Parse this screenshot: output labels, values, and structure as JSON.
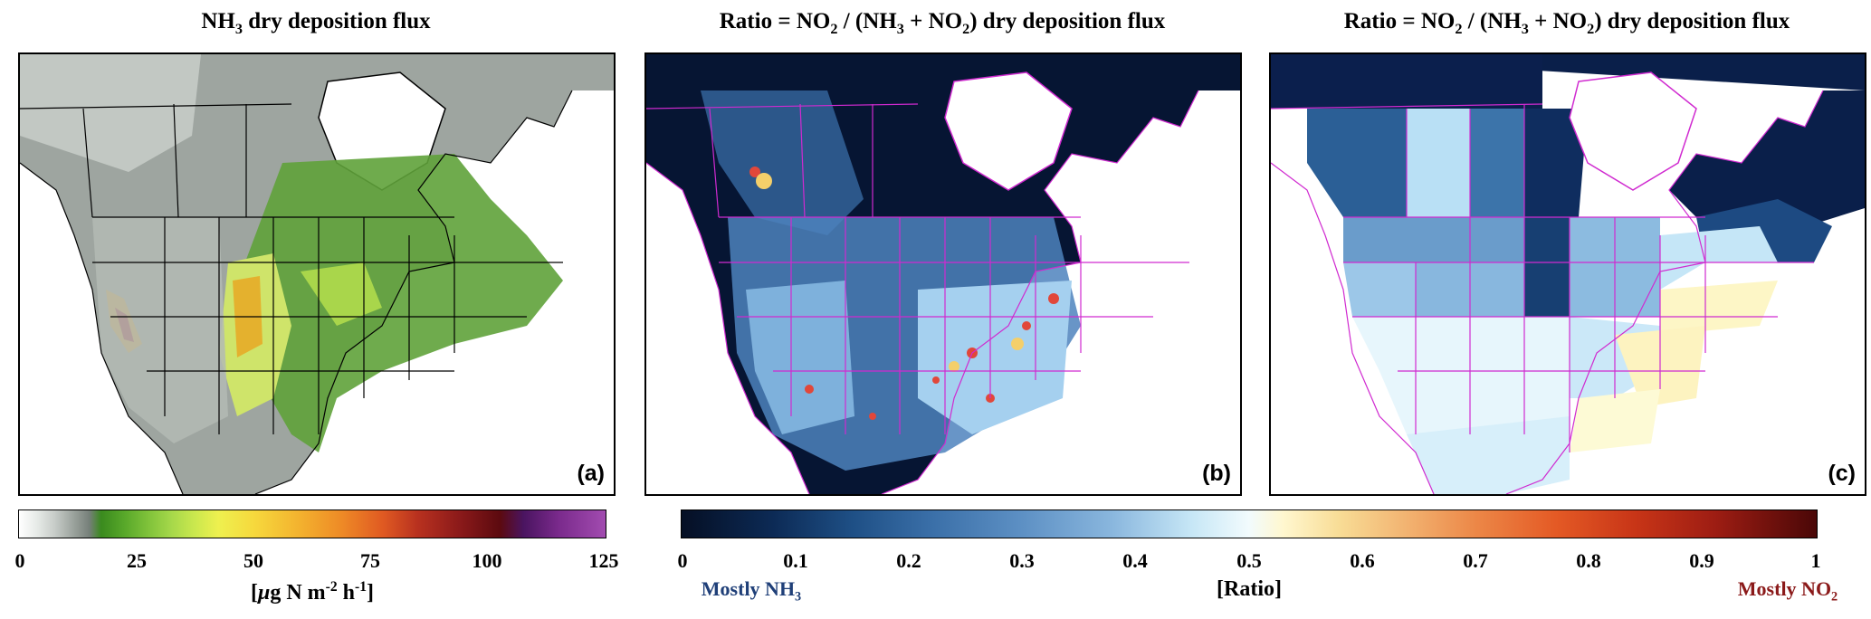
{
  "panels": {
    "a": {
      "title_main": "NH",
      "title_sub": "3",
      "title_rest": " dry deposition flux",
      "label": "(a)"
    },
    "b": {
      "title_pre": "Ratio = NO",
      "title_sub1": "2",
      "title_mid": " / (NH",
      "title_sub2": "3",
      "title_mid2": " + NO",
      "title_sub3": "2",
      "title_post": ") dry deposition flux",
      "label": "(b)"
    },
    "c": {
      "title_pre": "Ratio = NO",
      "title_sub1": "2",
      "title_mid": " / (NH",
      "title_sub2": "3",
      "title_mid2": " + NO",
      "title_sub3": "2",
      "title_post": ") dry deposition flux",
      "label": "(c)"
    }
  },
  "colorbar_flux": {
    "ticks": [
      "0",
      "25",
      "50",
      "75",
      "100",
      "125"
    ],
    "unit_pre": "[",
    "unit_mu": "μ",
    "unit_mid": "g N m",
    "unit_sup1": "-2",
    "unit_mid2": " h",
    "unit_sup2": "-1",
    "unit_post": "]"
  },
  "colorbar_ratio": {
    "ticks": [
      "0",
      "0.1",
      "0.2",
      "0.3",
      "0.4",
      "0.5",
      "0.6",
      "0.7",
      "0.8",
      "0.9",
      "1"
    ],
    "unit": "[Ratio]",
    "left_note_main": "Mostly NH",
    "left_note_sub": "3",
    "right_note_main": "Mostly NO",
    "right_note_sub": "2",
    "left_color": "#1f3f78",
    "right_color": "#8b1a1a"
  },
  "colors": {
    "border_lines": "#000000",
    "border_lines_ratio": "#d02ad0",
    "land_gray": "#9ea5a0",
    "water_white": "#ffffff",
    "ocean_ratio_dark": "#061533"
  }
}
